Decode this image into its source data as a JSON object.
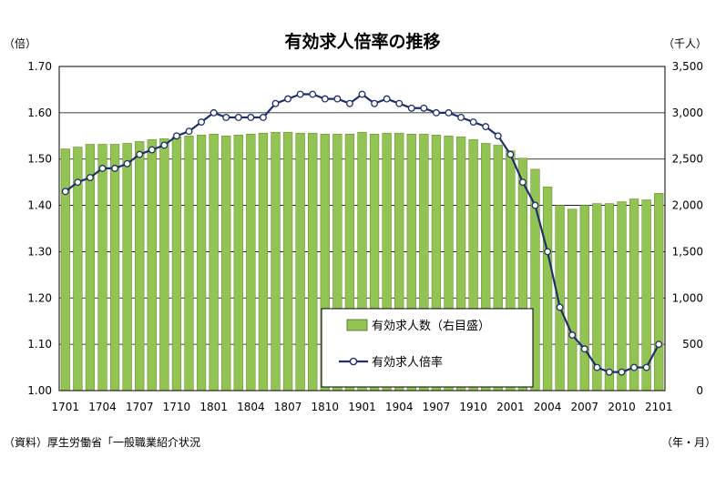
{
  "chart_data": {
    "type": "bar+line",
    "title": "有効求人倍率の推移",
    "left_unit": "（倍）",
    "right_unit": "（千人）",
    "x_unit": "（年・月）",
    "source": "（資料）厚生労働省「一般職業紹介状況",
    "x_tick_labels": [
      "1701",
      "1704",
      "1707",
      "1710",
      "1801",
      "1804",
      "1807",
      "1810",
      "1901",
      "1904",
      "1907",
      "1910",
      "2001",
      "2004",
      "2007",
      "2010",
      "2101"
    ],
    "y_left": {
      "ticks": [
        "1.00",
        "1.10",
        "1.20",
        "1.30",
        "1.40",
        "1.50",
        "1.60",
        "1.70"
      ],
      "range": [
        1.0,
        1.7
      ]
    },
    "y_right": {
      "ticks": [
        "0",
        "500",
        "1,000",
        "1,500",
        "2,000",
        "2,500",
        "3,000",
        "3,500"
      ],
      "range": [
        0,
        3500
      ]
    },
    "categories": [
      "1701",
      "1702",
      "1703",
      "1704",
      "1705",
      "1706",
      "1707",
      "1708",
      "1709",
      "1710",
      "1711",
      "1712",
      "1801",
      "1802",
      "1803",
      "1804",
      "1805",
      "1806",
      "1807",
      "1808",
      "1809",
      "1810",
      "1811",
      "1812",
      "1901",
      "1902",
      "1903",
      "1904",
      "1905",
      "1906",
      "1907",
      "1908",
      "1909",
      "1910",
      "1911",
      "1912",
      "2001",
      "2002",
      "2003",
      "2004",
      "2005",
      "2006",
      "2007",
      "2008",
      "2009",
      "2010",
      "2011",
      "2012",
      "2101"
    ],
    "series": [
      {
        "name": "有効求人数（右目盛）",
        "kind": "bar",
        "axis": "right",
        "color": "#92c353",
        "values": [
          2610,
          2630,
          2660,
          2660,
          2660,
          2670,
          2690,
          2710,
          2720,
          2740,
          2750,
          2760,
          2770,
          2750,
          2760,
          2770,
          2780,
          2790,
          2790,
          2780,
          2780,
          2770,
          2770,
          2770,
          2790,
          2770,
          2780,
          2780,
          2770,
          2770,
          2760,
          2750,
          2740,
          2710,
          2670,
          2650,
          2590,
          2510,
          2390,
          2200,
          2000,
          1960,
          2000,
          2020,
          2020,
          2040,
          2070,
          2060,
          2130
        ]
      },
      {
        "name": "有効求人倍率",
        "kind": "line",
        "axis": "left",
        "color": "#1f2f6b",
        "values": [
          1.43,
          1.45,
          1.46,
          1.48,
          1.48,
          1.49,
          1.51,
          1.52,
          1.53,
          1.55,
          1.56,
          1.58,
          1.6,
          1.59,
          1.59,
          1.59,
          1.59,
          1.62,
          1.63,
          1.64,
          1.64,
          1.63,
          1.63,
          1.62,
          1.64,
          1.62,
          1.63,
          1.62,
          1.61,
          1.61,
          1.6,
          1.6,
          1.59,
          1.58,
          1.57,
          1.55,
          1.51,
          1.45,
          1.4,
          1.3,
          1.18,
          1.12,
          1.09,
          1.05,
          1.04,
          1.04,
          1.05,
          1.05,
          1.1
        ]
      }
    ],
    "legend_position": "bottom-center"
  }
}
